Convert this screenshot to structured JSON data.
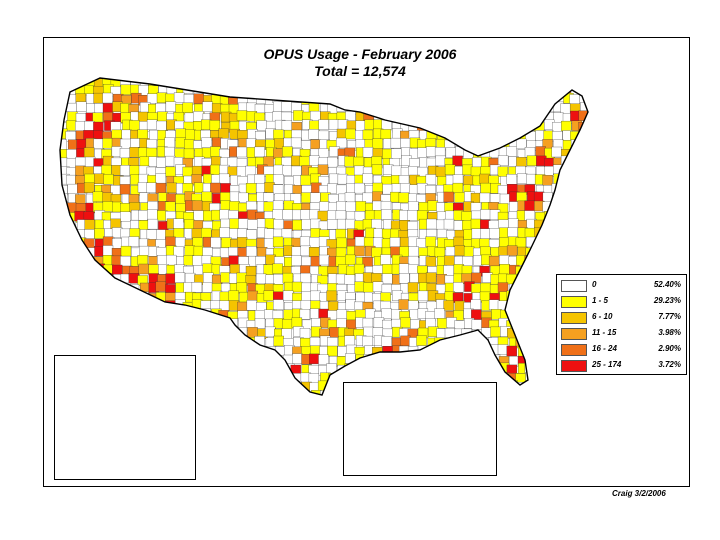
{
  "title": {
    "line1": "OPUS Usage - February 2006",
    "line2": "Total = 12,574"
  },
  "legend": [
    {
      "range": "0",
      "percent": "52.40%",
      "color": "#ffffff"
    },
    {
      "range": "1 - 5",
      "percent": "29.23%",
      "color": "#ffff00"
    },
    {
      "range": "6 - 10",
      "percent": "7.77%",
      "color": "#f5c400"
    },
    {
      "range": "11 - 15",
      "percent": "3.98%",
      "color": "#f5a020"
    },
    {
      "range": "16 - 24",
      "percent": "2.90%",
      "color": "#f07018"
    },
    {
      "range": "25 - 174",
      "percent": "3.72%",
      "color": "#ee1010"
    }
  ],
  "credit": "Craig 3/2/2006",
  "colors": {
    "c0": "#ffffff",
    "c1": "#ffff00",
    "c2": "#f5c400",
    "c3": "#f5a020",
    "c4": "#f07018",
    "c5": "#ee1010"
  }
}
